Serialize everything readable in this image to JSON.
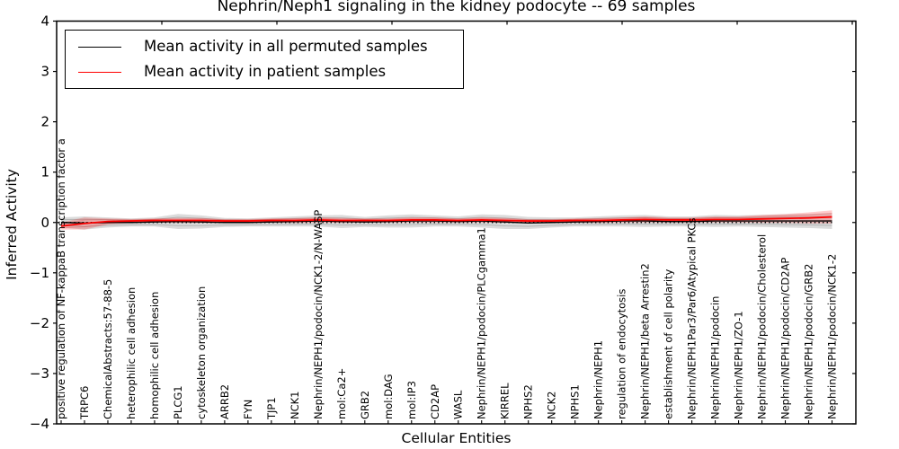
{
  "chart_data": {
    "type": "line",
    "title": "Nephrin/Neph1 signaling in the kidney podocyte -- 69 samples",
    "xlabel": "Cellular Entities",
    "ylabel": "Inferred Activity",
    "ylim": [
      -4,
      4
    ],
    "yticks": [
      4,
      3,
      2,
      1,
      0,
      -1,
      -2,
      -3,
      -4
    ],
    "grid": false,
    "zero_line_style": "dotted",
    "legend_position": "upper left",
    "legend": [
      {
        "label": "Mean activity in all permuted samples",
        "color": "#000000"
      },
      {
        "label": "Mean activity in patient samples",
        "color": "#ff0000"
      }
    ],
    "categories": [
      "positive regulation of NF-kappaB transcription factor a",
      "TRPC6",
      "ChemicalAbstracts:57-88-5",
      "heterophilic cell adhesion",
      "homophilic cell adhesion",
      "PLCG1",
      "cytoskeleton organization",
      "ARRB2",
      "FYN",
      "TJP1",
      "NCK1",
      "Nephrin/NEPH1/podocin/NCK1-2/N-WASP",
      "mol:Ca2+",
      "GRB2",
      "mol:DAG",
      "mol:IP3",
      "CD2AP",
      "WASL",
      "Nephrin/NEPH1/podocin/PLCgamma1",
      "KIRREL",
      "NPHS2",
      "NCK2",
      "NPHS1",
      "Nephrin/NEPH1",
      "regulation of endocytosis",
      "Nephrin/NEPH1/beta Arrestin2",
      "establishment of cell polarity",
      "Nephrin/NEPH1Par3/Par6/Atypical PKCs",
      "Nephrin/NEPH1/podocin",
      "Nephrin/NEPH1/ZO-1",
      "Nephrin/NEPH1/podocin/Cholesterol",
      "Nephrin/NEPH1/podocin/CD2AP",
      "Nephrin/NEPH1/podocin/GRB2",
      "Nephrin/NEPH1/podocin/NCK1-2"
    ],
    "series": [
      {
        "name": "Mean activity in all permuted samples",
        "color": "#000000",
        "band_color": "rgba(125,125,125,0.28)",
        "values": [
          0.0,
          -0.01,
          0.0,
          0.0,
          0.01,
          0.02,
          0.01,
          0.0,
          0.0,
          0.01,
          0.02,
          0.03,
          0.02,
          0.01,
          0.02,
          0.03,
          0.03,
          0.02,
          0.03,
          0.01,
          -0.01,
          0.0,
          0.01,
          0.02,
          0.03,
          0.03,
          0.02,
          0.02,
          0.03,
          0.03,
          0.03,
          0.03,
          0.03,
          0.03
        ],
        "band_halfwidth": [
          0.1,
          0.13,
          0.1,
          0.08,
          0.09,
          0.15,
          0.13,
          0.09,
          0.08,
          0.09,
          0.1,
          0.11,
          0.13,
          0.1,
          0.12,
          0.13,
          0.11,
          0.1,
          0.13,
          0.14,
          0.12,
          0.1,
          0.09,
          0.1,
          0.11,
          0.12,
          0.1,
          0.1,
          0.12,
          0.11,
          0.12,
          0.13,
          0.14,
          0.16
        ]
      },
      {
        "name": "Mean activity in patient samples",
        "color": "#ff0000",
        "band_color": "rgba(255,0,0,0.20)",
        "values": [
          -0.07,
          -0.02,
          0.02,
          0.03,
          0.04,
          0.04,
          0.04,
          0.03,
          0.03,
          0.04,
          0.04,
          0.05,
          0.04,
          0.04,
          0.04,
          0.05,
          0.05,
          0.04,
          0.05,
          0.04,
          0.03,
          0.03,
          0.04,
          0.04,
          0.05,
          0.06,
          0.05,
          0.05,
          0.06,
          0.06,
          0.07,
          0.08,
          0.09,
          0.11
        ],
        "band_halfwidth": [
          0.07,
          0.12,
          0.06,
          0.04,
          0.04,
          0.05,
          0.05,
          0.04,
          0.04,
          0.04,
          0.05,
          0.05,
          0.05,
          0.04,
          0.04,
          0.05,
          0.05,
          0.04,
          0.05,
          0.05,
          0.04,
          0.04,
          0.04,
          0.05,
          0.05,
          0.06,
          0.05,
          0.05,
          0.06,
          0.06,
          0.08,
          0.09,
          0.11,
          0.13
        ]
      }
    ]
  }
}
